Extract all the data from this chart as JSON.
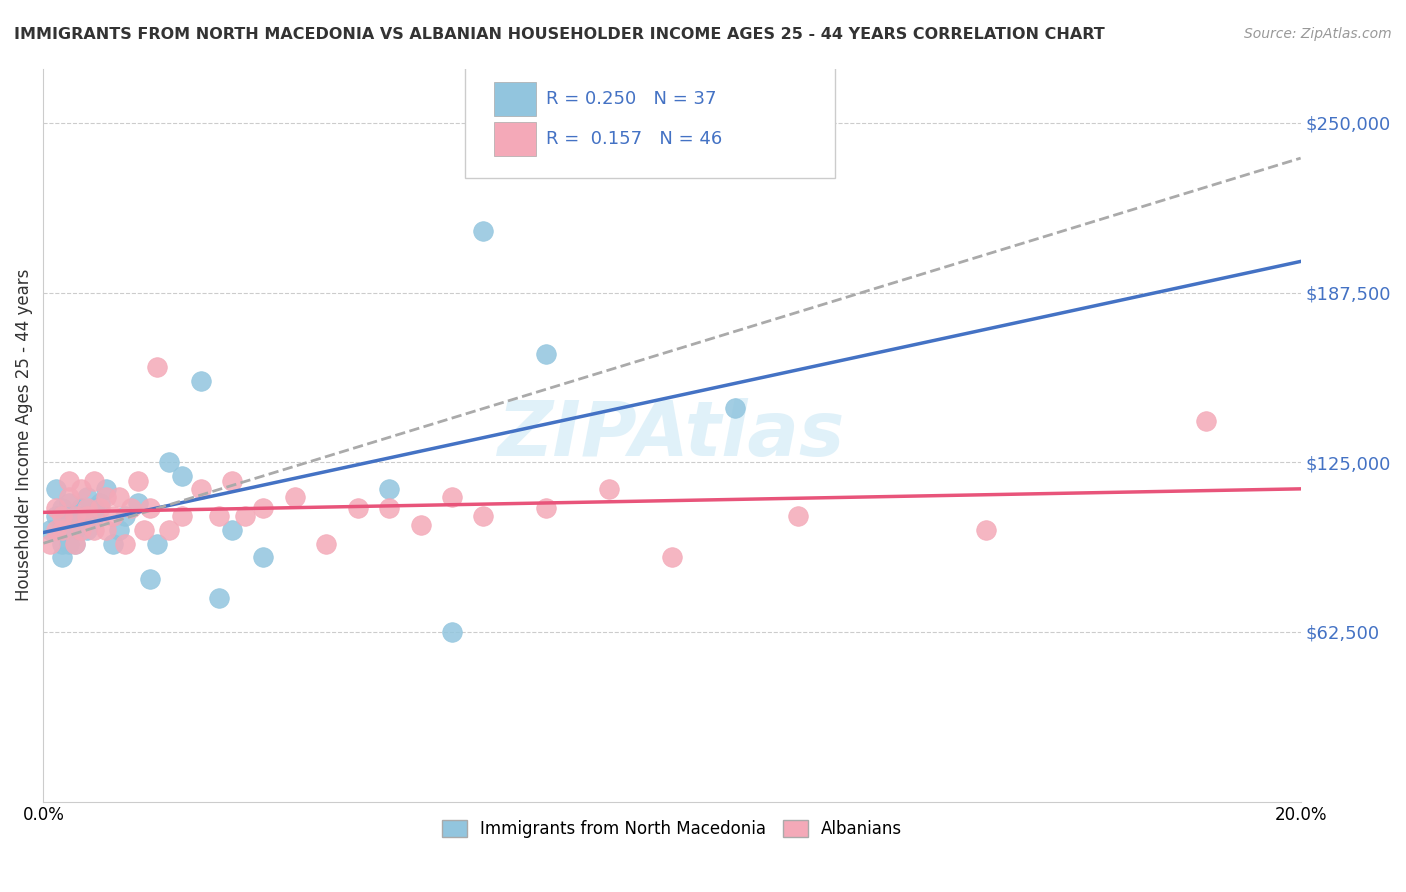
{
  "title": "IMMIGRANTS FROM NORTH MACEDONIA VS ALBANIAN HOUSEHOLDER INCOME AGES 25 - 44 YEARS CORRELATION CHART",
  "source": "Source: ZipAtlas.com",
  "ylabel": "Householder Income Ages 25 - 44 years",
  "xlim": [
    0.0,
    0.2
  ],
  "ylim": [
    0,
    270000
  ],
  "yticks": [
    0,
    62500,
    125000,
    187500,
    250000
  ],
  "ytick_labels": [
    "",
    "$62,500",
    "$125,000",
    "$187,500",
    "$250,000"
  ],
  "xticks": [
    0.0,
    0.05,
    0.1,
    0.15,
    0.2
  ],
  "xtick_labels": [
    "0.0%",
    "",
    "",
    "",
    "20.0%"
  ],
  "blue_R": 0.25,
  "blue_N": 37,
  "pink_R": 0.157,
  "pink_N": 46,
  "blue_color": "#92C5DE",
  "pink_color": "#F4A9B8",
  "blue_line_color": "#4472C4",
  "pink_line_color": "#E8547A",
  "dash_line_color": "#AAAAAA",
  "background_color": "#FFFFFF",
  "watermark": "ZIPAtlas",
  "legend_blue_label": "Immigrants from North Macedonia",
  "legend_pink_label": "Albanians",
  "blue_x": [
    0.001,
    0.002,
    0.002,
    0.003,
    0.003,
    0.003,
    0.004,
    0.004,
    0.004,
    0.005,
    0.005,
    0.005,
    0.006,
    0.006,
    0.007,
    0.007,
    0.008,
    0.008,
    0.009,
    0.01,
    0.011,
    0.012,
    0.013,
    0.015,
    0.017,
    0.018,
    0.02,
    0.022,
    0.025,
    0.028,
    0.03,
    0.035,
    0.055,
    0.065,
    0.07,
    0.08,
    0.11
  ],
  "blue_y": [
    100000,
    115000,
    105000,
    108000,
    90000,
    95000,
    100000,
    95000,
    110000,
    105000,
    95000,
    100000,
    108000,
    105000,
    112000,
    100000,
    108000,
    105000,
    110000,
    115000,
    95000,
    100000,
    105000,
    110000,
    82000,
    95000,
    125000,
    120000,
    155000,
    75000,
    100000,
    90000,
    115000,
    62500,
    210000,
    165000,
    145000
  ],
  "pink_x": [
    0.001,
    0.002,
    0.002,
    0.003,
    0.003,
    0.004,
    0.004,
    0.005,
    0.005,
    0.006,
    0.006,
    0.007,
    0.007,
    0.008,
    0.008,
    0.009,
    0.01,
    0.01,
    0.011,
    0.012,
    0.013,
    0.014,
    0.015,
    0.016,
    0.017,
    0.018,
    0.02,
    0.022,
    0.025,
    0.028,
    0.03,
    0.032,
    0.035,
    0.04,
    0.045,
    0.05,
    0.055,
    0.06,
    0.065,
    0.07,
    0.08,
    0.09,
    0.1,
    0.12,
    0.15,
    0.185
  ],
  "pink_y": [
    95000,
    100000,
    108000,
    105000,
    100000,
    112000,
    118000,
    105000,
    95000,
    100000,
    115000,
    108000,
    105000,
    118000,
    100000,
    108000,
    112000,
    100000,
    105000,
    112000,
    95000,
    108000,
    118000,
    100000,
    108000,
    160000,
    100000,
    105000,
    115000,
    105000,
    118000,
    105000,
    108000,
    112000,
    95000,
    108000,
    108000,
    102000,
    112000,
    105000,
    108000,
    115000,
    90000,
    105000,
    100000,
    140000
  ]
}
